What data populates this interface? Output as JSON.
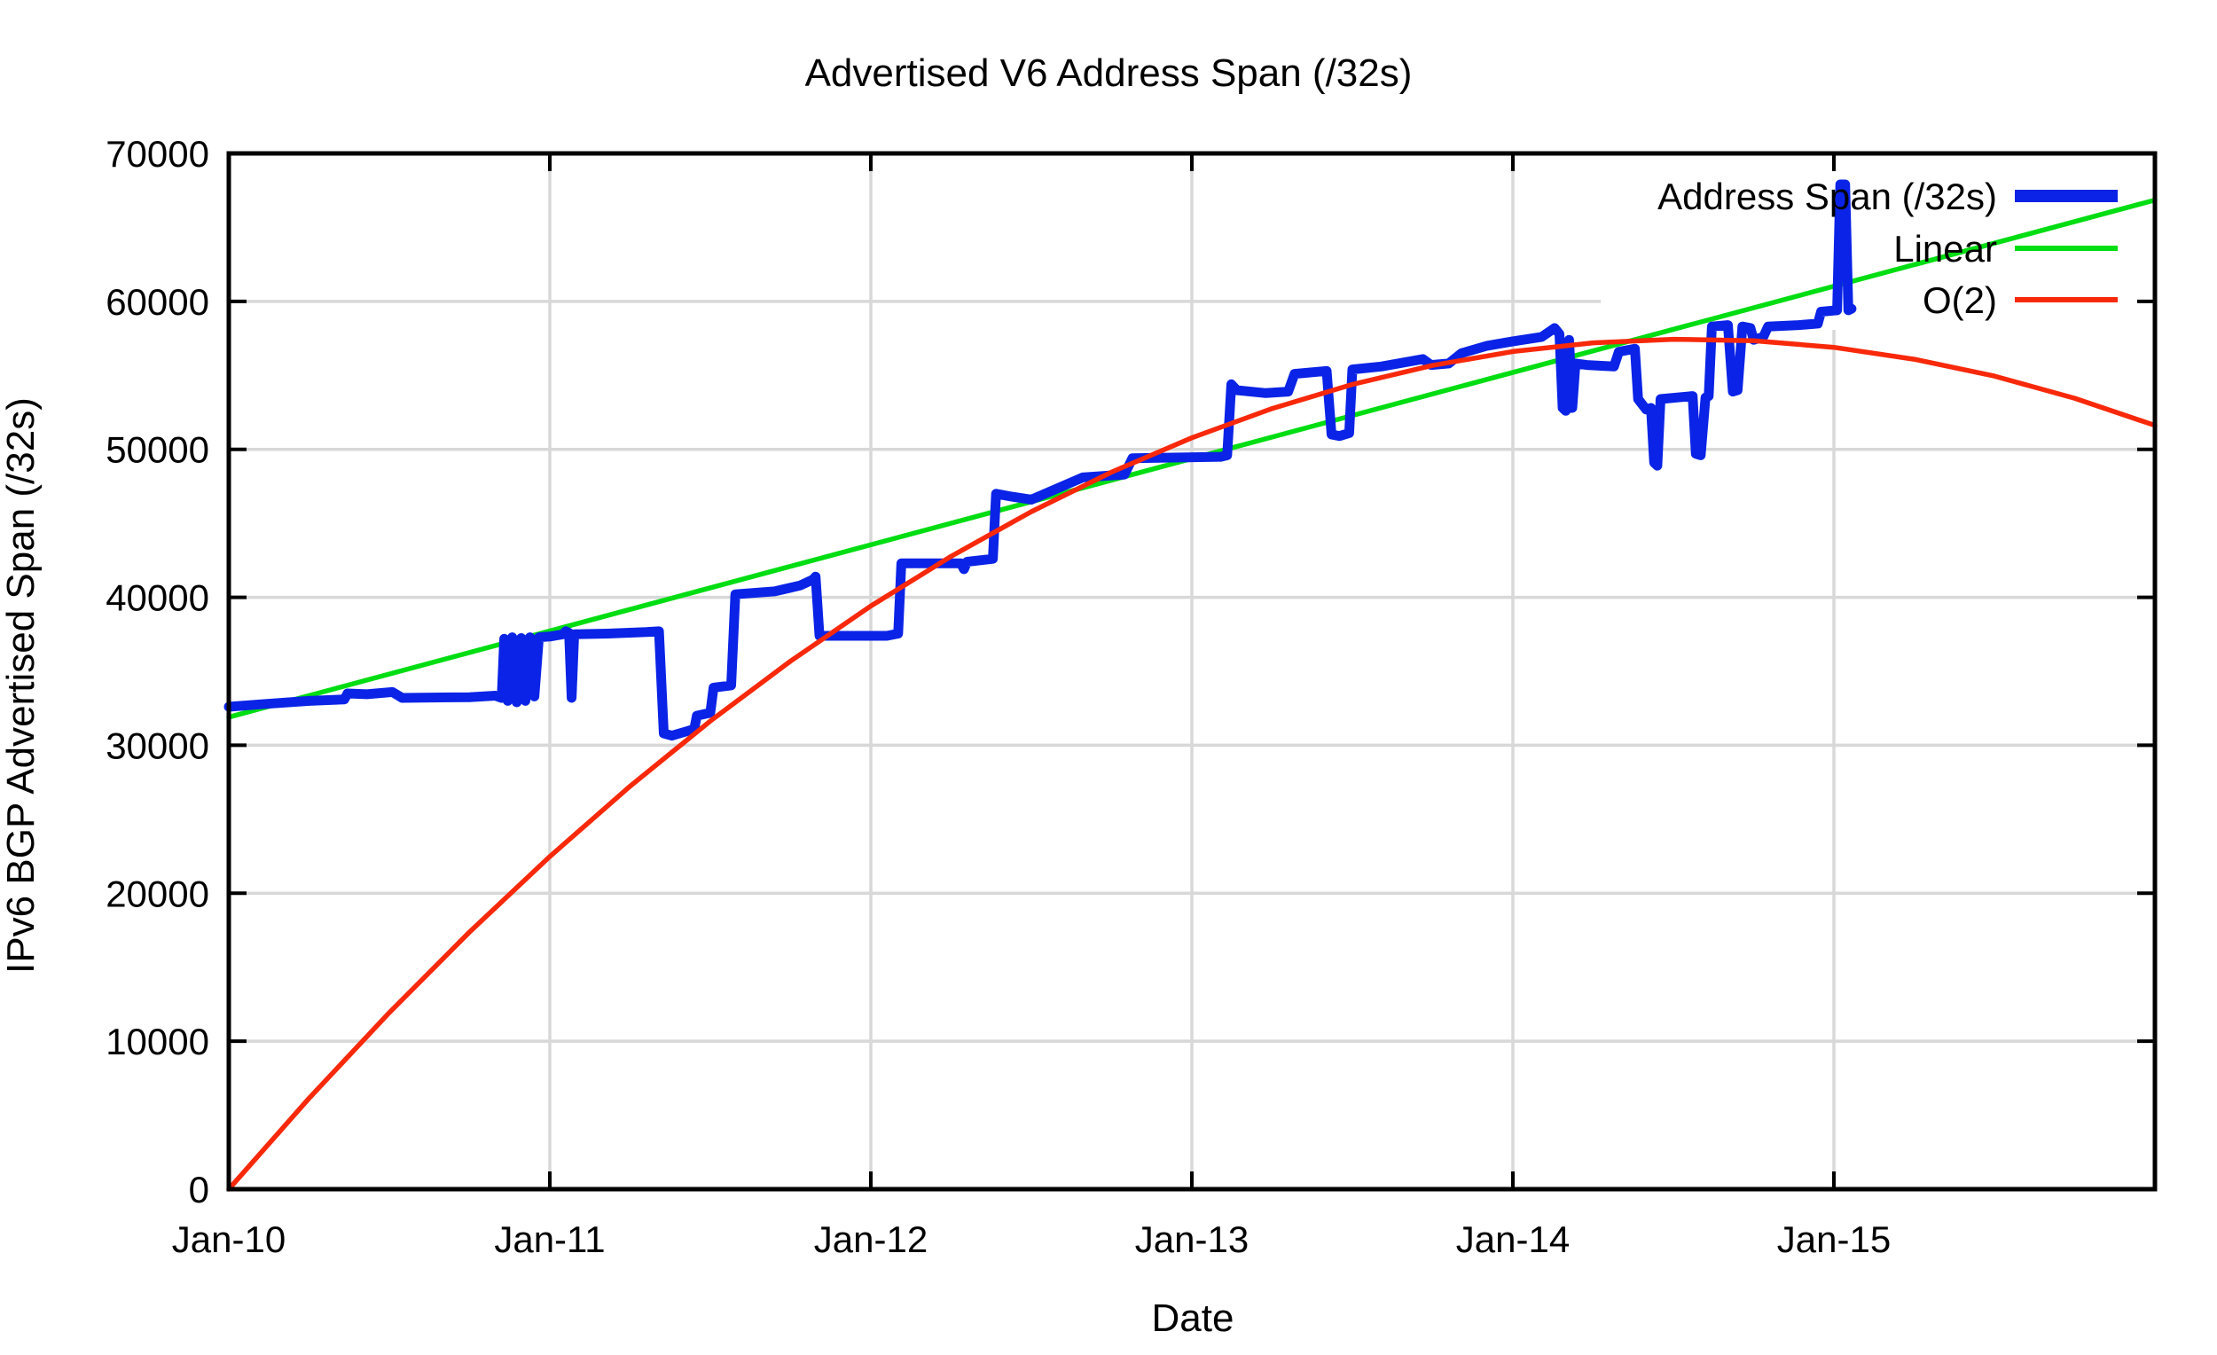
{
  "title": "Advertised V6 Address Span (/32s)",
  "axes": {
    "x_label": "Date",
    "y_label": "IPv6 BGP Advertised Span (/32s)"
  },
  "colors": {
    "series_blue": "#0a23e6",
    "series_green": "#00dd12",
    "series_red": "#f8290a",
    "grid": "#d8d8d8",
    "border": "#000000",
    "background": "#ffffff"
  },
  "legend": {
    "position": "top-right",
    "opaque": true,
    "entries": [
      {
        "label": "Address Span (/32s)",
        "color": "#0a23e6",
        "sample_width": 14
      },
      {
        "label": "Linear",
        "color": "#00dd12",
        "sample_width": 6
      },
      {
        "label": "O(2)",
        "color": "#f8290a",
        "sample_width": 6
      }
    ]
  },
  "chart_data": {
    "type": "line",
    "title": "Advertised V6 Address Span (/32s)",
    "xlabel": "Date",
    "ylabel": "IPv6 BGP Advertised Span (/32s)",
    "x_unit": "years since Jan-2010",
    "xlim": [
      0,
      6
    ],
    "ylim": [
      0,
      70000
    ],
    "grid": true,
    "x_ticks": [
      {
        "pos": 0,
        "label": "Jan-10"
      },
      {
        "pos": 1,
        "label": "Jan-11"
      },
      {
        "pos": 2,
        "label": "Jan-12"
      },
      {
        "pos": 3,
        "label": "Jan-13"
      },
      {
        "pos": 4,
        "label": "Jan-14"
      },
      {
        "pos": 5,
        "label": "Jan-15"
      }
    ],
    "y_ticks": [
      {
        "pos": 0,
        "label": "0"
      },
      {
        "pos": 10000,
        "label": "10000"
      },
      {
        "pos": 20000,
        "label": "20000"
      },
      {
        "pos": 30000,
        "label": "30000"
      },
      {
        "pos": 40000,
        "label": "40000"
      },
      {
        "pos": 50000,
        "label": "50000"
      },
      {
        "pos": 60000,
        "label": "60000"
      },
      {
        "pos": 70000,
        "label": "70000"
      }
    ],
    "series": [
      {
        "name": "Linear",
        "color": "#00dd12",
        "stroke_width": 5.5,
        "points": [
          [
            0,
            31900
          ],
          [
            6,
            66850
          ]
        ]
      },
      {
        "name": "Address Span (/32s)",
        "color": "#0a23e6",
        "stroke_width": 11,
        "points": [
          [
            0.0,
            32600
          ],
          [
            0.12,
            32800
          ],
          [
            0.25,
            33000
          ],
          [
            0.36,
            33100
          ],
          [
            0.37,
            33500
          ],
          [
            0.43,
            33450
          ],
          [
            0.51,
            33600
          ],
          [
            0.54,
            33200
          ],
          [
            0.75,
            33250
          ],
          [
            0.83,
            33350
          ],
          [
            0.85,
            33200
          ],
          [
            0.858,
            37200
          ],
          [
            0.869,
            33000
          ],
          [
            0.883,
            37300
          ],
          [
            0.897,
            32900
          ],
          [
            0.911,
            37250
          ],
          [
            0.924,
            33000
          ],
          [
            0.938,
            37300
          ],
          [
            0.952,
            33300
          ],
          [
            0.966,
            37300
          ],
          [
            1.0,
            37350
          ],
          [
            1.04,
            37500
          ],
          [
            1.05,
            37700
          ],
          [
            1.06,
            37600
          ],
          [
            1.068,
            33200
          ],
          [
            1.076,
            37500
          ],
          [
            1.18,
            37550
          ],
          [
            1.3,
            37650
          ],
          [
            1.34,
            37700
          ],
          [
            1.355,
            30800
          ],
          [
            1.38,
            30650
          ],
          [
            1.42,
            30900
          ],
          [
            1.45,
            31100
          ],
          [
            1.458,
            32000
          ],
          [
            1.5,
            32200
          ],
          [
            1.51,
            33900
          ],
          [
            1.565,
            34050
          ],
          [
            1.578,
            40200
          ],
          [
            1.7,
            40400
          ],
          [
            1.78,
            40800
          ],
          [
            1.82,
            41200
          ],
          [
            1.828,
            41400
          ],
          [
            1.84,
            37400
          ],
          [
            2.05,
            37400
          ],
          [
            2.085,
            37550
          ],
          [
            2.095,
            42300
          ],
          [
            2.28,
            42300
          ],
          [
            2.29,
            41900
          ],
          [
            2.3,
            42400
          ],
          [
            2.38,
            42600
          ],
          [
            2.39,
            47000
          ],
          [
            2.44,
            46800
          ],
          [
            2.5,
            46600
          ],
          [
            2.66,
            48100
          ],
          [
            2.79,
            48300
          ],
          [
            2.815,
            49400
          ],
          [
            3.09,
            49500
          ],
          [
            3.11,
            49600
          ],
          [
            3.123,
            54400
          ],
          [
            3.14,
            54000
          ],
          [
            3.23,
            53800
          ],
          [
            3.3,
            53900
          ],
          [
            3.32,
            55100
          ],
          [
            3.42,
            55300
          ],
          [
            3.435,
            51000
          ],
          [
            3.46,
            50900
          ],
          [
            3.49,
            51100
          ],
          [
            3.5,
            55400
          ],
          [
            3.59,
            55600
          ],
          [
            3.72,
            56100
          ],
          [
            3.745,
            55700
          ],
          [
            3.8,
            55800
          ],
          [
            3.84,
            56500
          ],
          [
            3.92,
            57000
          ],
          [
            4.0,
            57300
          ],
          [
            4.09,
            57600
          ],
          [
            4.13,
            58200
          ],
          [
            4.145,
            57800
          ],
          [
            4.155,
            52800
          ],
          [
            4.165,
            52600
          ],
          [
            4.175,
            57400
          ],
          [
            4.185,
            52800
          ],
          [
            4.195,
            55800
          ],
          [
            4.23,
            55700
          ],
          [
            4.315,
            55600
          ],
          [
            4.33,
            56600
          ],
          [
            4.38,
            56800
          ],
          [
            4.39,
            53400
          ],
          [
            4.415,
            52700
          ],
          [
            4.43,
            52800
          ],
          [
            4.44,
            49100
          ],
          [
            4.45,
            48900
          ],
          [
            4.46,
            53400
          ],
          [
            4.56,
            53600
          ],
          [
            4.57,
            49700
          ],
          [
            4.585,
            49600
          ],
          [
            4.6,
            53500
          ],
          [
            4.61,
            53600
          ],
          [
            4.62,
            58300
          ],
          [
            4.67,
            58400
          ],
          [
            4.685,
            53900
          ],
          [
            4.7,
            54000
          ],
          [
            4.715,
            58300
          ],
          [
            4.74,
            58200
          ],
          [
            4.75,
            57400
          ],
          [
            4.78,
            57600
          ],
          [
            4.795,
            58300
          ],
          [
            4.89,
            58400
          ],
          [
            4.95,
            58500
          ],
          [
            4.96,
            59300
          ],
          [
            5.01,
            59400
          ],
          [
            5.02,
            67900
          ],
          [
            5.035,
            67900
          ],
          [
            5.045,
            59400
          ],
          [
            5.055,
            59500
          ]
        ]
      },
      {
        "name": "O(2)",
        "color": "#f8290a",
        "stroke_width": 5.5,
        "points": [
          [
            0,
            0
          ],
          [
            0.25,
            6140
          ],
          [
            0.5,
            11930
          ],
          [
            0.75,
            17380
          ],
          [
            1,
            22480
          ],
          [
            1.25,
            27230
          ],
          [
            1.5,
            31640
          ],
          [
            1.75,
            35690
          ],
          [
            2,
            39410
          ],
          [
            2.25,
            42770
          ],
          [
            2.5,
            45790
          ],
          [
            2.75,
            48460
          ],
          [
            3,
            50780
          ],
          [
            3.25,
            52760
          ],
          [
            3.5,
            54390
          ],
          [
            3.75,
            55670
          ],
          [
            4,
            56610
          ],
          [
            4.25,
            57200
          ],
          [
            4.5,
            57440
          ],
          [
            4.75,
            57340
          ],
          [
            5,
            56890
          ],
          [
            5.25,
            56090
          ],
          [
            5.5,
            54950
          ],
          [
            5.75,
            53450
          ],
          [
            6,
            51620
          ]
        ]
      }
    ]
  }
}
